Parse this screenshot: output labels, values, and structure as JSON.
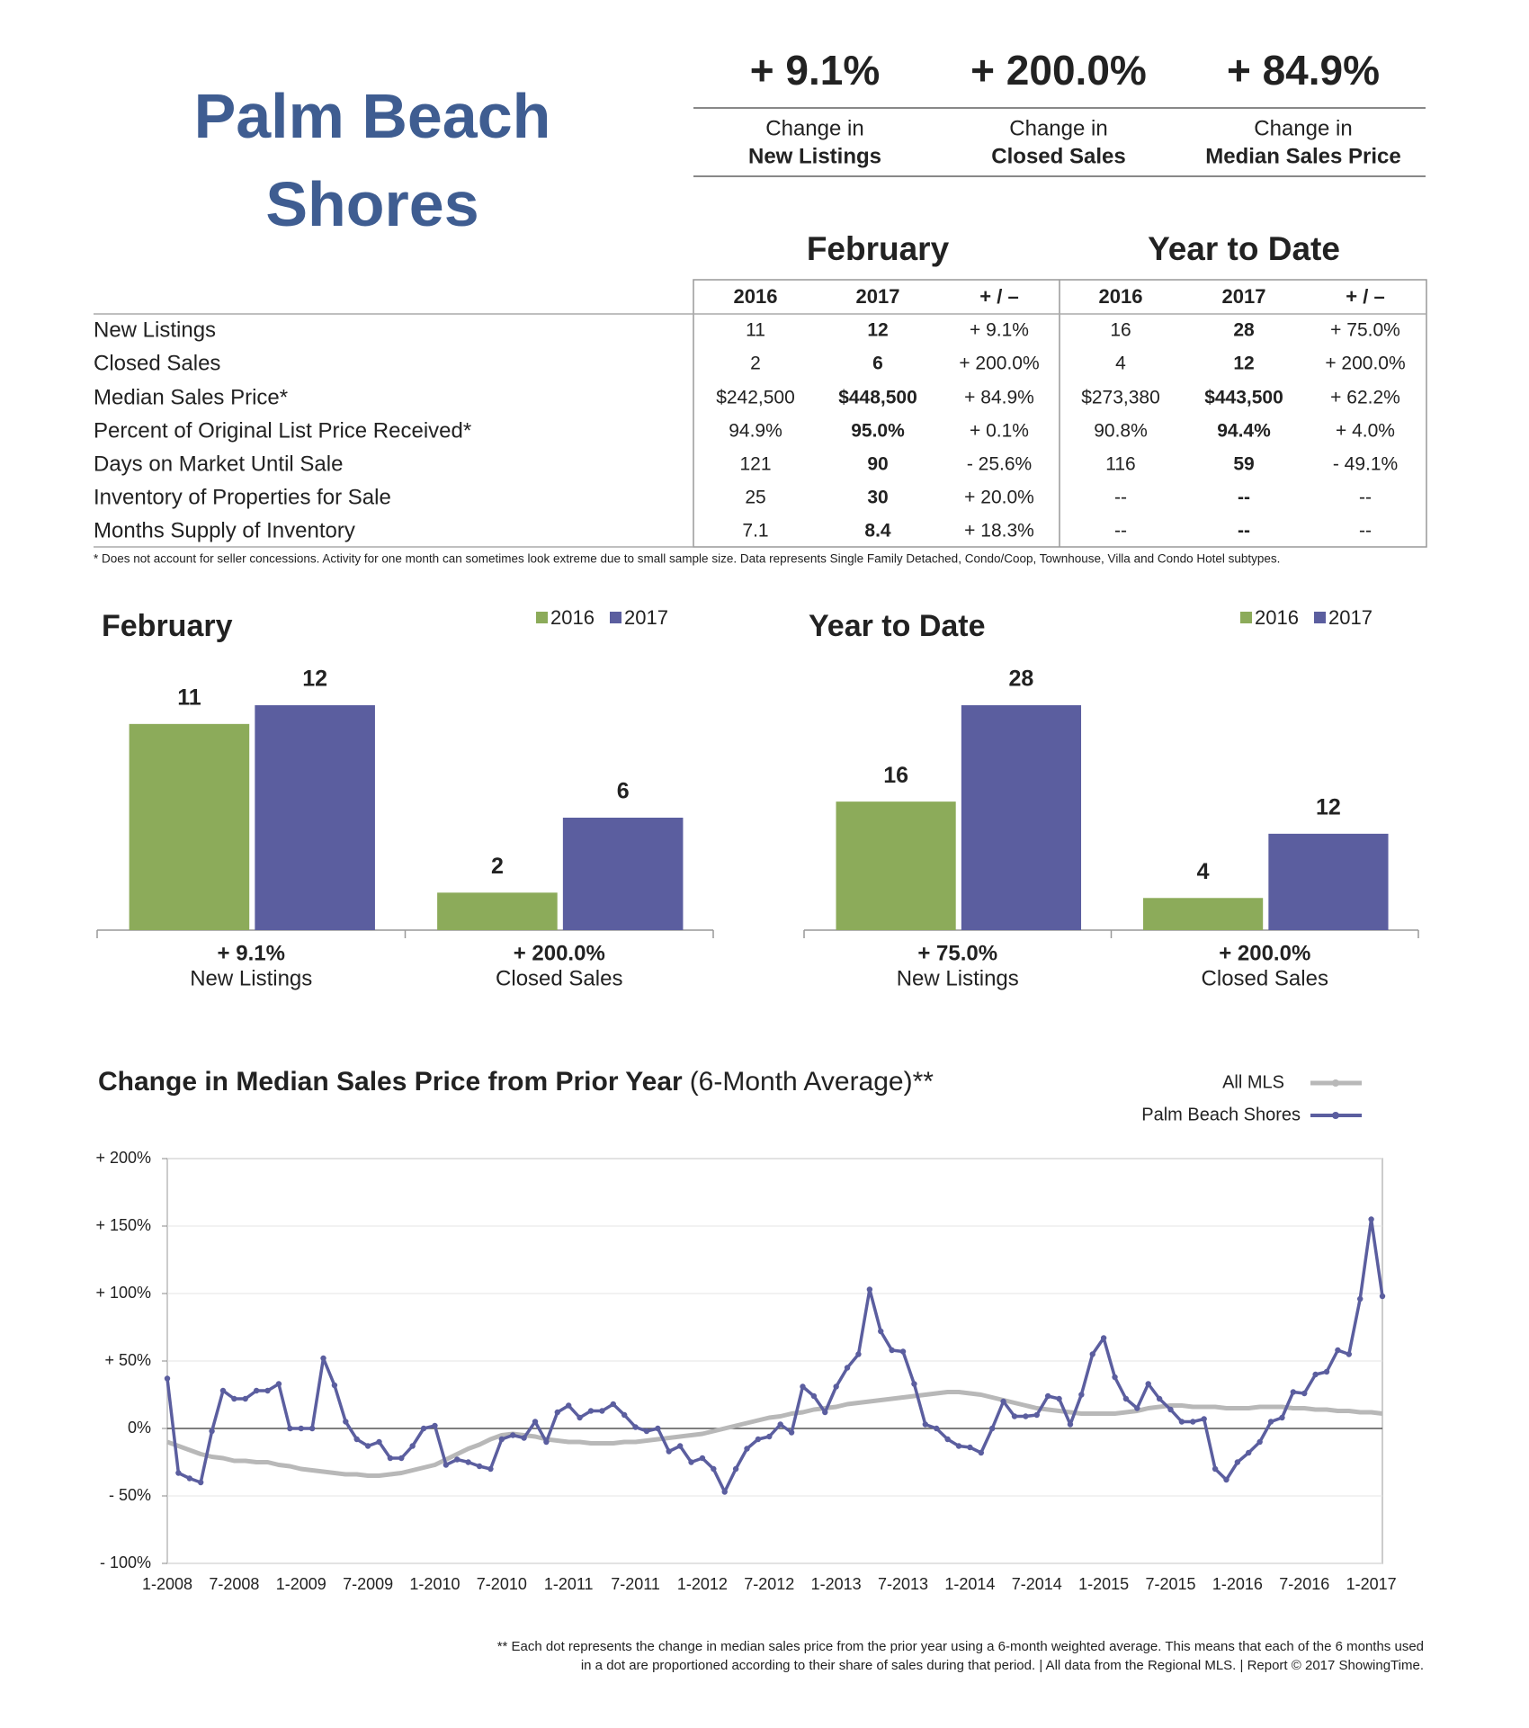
{
  "header": {
    "title": "Palm Beach Shores"
  },
  "summary": [
    {
      "value": "+ 9.1%",
      "label": "Change in",
      "metric": "New Listings"
    },
    {
      "value": "+ 200.0%",
      "label": "Change in",
      "metric": "Closed Sales"
    },
    {
      "value": "+ 84.9%",
      "label": "Change in",
      "metric": "Median Sales Price"
    }
  ],
  "table": {
    "groups": [
      "February",
      "Year to Date"
    ],
    "columns": [
      "2016",
      "2017",
      "+ / –",
      "2016",
      "2017",
      "+ / –"
    ],
    "rows": [
      {
        "label": "New Listings",
        "cells": [
          "11",
          "12",
          "+ 9.1%",
          "16",
          "28",
          "+ 75.0%"
        ]
      },
      {
        "label": "Closed Sales",
        "cells": [
          "2",
          "6",
          "+ 200.0%",
          "4",
          "12",
          "+ 200.0%"
        ]
      },
      {
        "label": "Median Sales Price*",
        "cells": [
          "$242,500",
          "$448,500",
          "+ 84.9%",
          "$273,380",
          "$443,500",
          "+ 62.2%"
        ]
      },
      {
        "label": "Percent of Original List Price Received*",
        "cells": [
          "94.9%",
          "95.0%",
          "+ 0.1%",
          "90.8%",
          "94.4%",
          "+ 4.0%"
        ]
      },
      {
        "label": "Days on Market Until Sale",
        "cells": [
          "121",
          "90",
          "- 25.6%",
          "116",
          "59",
          "- 49.1%"
        ]
      },
      {
        "label": "Inventory of Properties for Sale",
        "cells": [
          "25",
          "30",
          "+ 20.0%",
          "--",
          "--",
          "--"
        ]
      },
      {
        "label": "Months Supply of Inventory",
        "cells": [
          "7.1",
          "8.4",
          "+ 18.3%",
          "--",
          "--",
          "--"
        ]
      }
    ],
    "footnote": "* Does not account for seller concessions. Activity for one month can sometimes look extreme due to small sample size. Data represents Single Family Detached, Condo/Coop, Townhouse, Villa and Condo Hotel subtypes."
  },
  "chart_data": [
    {
      "type": "bar",
      "title": "February",
      "categories": [
        "New Listings",
        "Closed Sales"
      ],
      "category_changes": [
        "+ 9.1%",
        "+ 200.0%"
      ],
      "series": [
        {
          "name": "2016",
          "color": "#8cab5a",
          "values": [
            11,
            2
          ]
        },
        {
          "name": "2017",
          "color": "#5b5e9f",
          "values": [
            12,
            6
          ]
        }
      ]
    },
    {
      "type": "bar",
      "title": "Year to Date",
      "categories": [
        "New Listings",
        "Closed Sales"
      ],
      "category_changes": [
        "+ 75.0%",
        "+ 200.0%"
      ],
      "series": [
        {
          "name": "2016",
          "color": "#8cab5a",
          "values": [
            16,
            4
          ]
        },
        {
          "name": "2017",
          "color": "#5b5e9f",
          "values": [
            28,
            12
          ]
        }
      ]
    },
    {
      "type": "line",
      "title": "Change in Median Sales Price from Prior Year",
      "subtitle": "(6-Month Average)**",
      "categories": [
        "1-2008",
        null,
        null,
        null,
        null,
        null,
        "7-2008",
        null,
        null,
        null,
        null,
        null,
        "1-2009",
        null,
        null,
        null,
        null,
        null,
        "7-2009",
        null,
        null,
        null,
        null,
        null,
        "1-2010",
        null,
        null,
        null,
        null,
        null,
        "7-2010",
        null,
        null,
        null,
        null,
        null,
        "1-2011",
        null,
        null,
        null,
        null,
        null,
        "7-2011",
        null,
        null,
        null,
        null,
        null,
        "1-2012",
        null,
        null,
        null,
        null,
        null,
        "7-2012",
        null,
        null,
        null,
        null,
        null,
        "1-2013",
        null,
        null,
        null,
        null,
        null,
        "7-2013",
        null,
        null,
        null,
        null,
        null,
        "1-2014",
        null,
        null,
        null,
        null,
        null,
        "7-2014",
        null,
        null,
        null,
        null,
        null,
        "1-2015",
        null,
        null,
        null,
        null,
        null,
        "7-2015",
        null,
        null,
        null,
        null,
        null,
        "1-2016",
        null,
        null,
        null,
        null,
        null,
        "7-2016",
        null,
        null,
        null,
        null,
        null,
        "1-2017",
        null
      ],
      "ylim": [
        -100,
        200
      ],
      "yticks": [
        {
          "value": 200,
          "label": "+ 200%"
        },
        {
          "value": 150,
          "label": "+ 150%"
        },
        {
          "value": 100,
          "label": "+ 100%"
        },
        {
          "value": 50,
          "label": "+ 50%"
        },
        {
          "value": 0,
          "label": "0%"
        },
        {
          "value": -50,
          "label": "- 50%"
        },
        {
          "value": -100,
          "label": "- 100%"
        }
      ],
      "series": [
        {
          "name": "All MLS",
          "color": "#b8b8b8",
          "markers": false,
          "values": [
            -10,
            -13,
            -16,
            -19,
            -21,
            -22,
            -24,
            -24,
            -25,
            -25,
            -27,
            -28,
            -30,
            -31,
            -32,
            -33,
            -34,
            -34,
            -35,
            -35,
            -34,
            -33,
            -31,
            -29,
            -27,
            -23,
            -19,
            -15,
            -12,
            -8,
            -5,
            -4,
            -5,
            -6,
            -8,
            -9,
            -10,
            -10,
            -11,
            -11,
            -11,
            -10,
            -10,
            -9,
            -8,
            -7,
            -6,
            -5,
            -4,
            -2,
            0,
            2,
            4,
            6,
            8,
            9,
            11,
            12,
            14,
            15,
            16,
            18,
            19,
            20,
            21,
            22,
            23,
            24,
            25,
            26,
            27,
            27,
            26,
            25,
            23,
            21,
            19,
            17,
            15,
            14,
            13,
            12,
            11,
            11,
            11,
            11,
            12,
            13,
            15,
            16,
            17,
            17,
            16,
            16,
            16,
            15,
            15,
            15,
            16,
            16,
            16,
            15,
            15,
            14,
            14,
            13,
            13,
            12,
            12,
            11
          ]
        },
        {
          "name": "Palm Beach Shores",
          "color": "#5b5e9f",
          "markers": true,
          "values": [
            37,
            -33,
            -37,
            -40,
            -2,
            28,
            22,
            22,
            28,
            28,
            33,
            0,
            0,
            0,
            52,
            32,
            5,
            -8,
            -13,
            -10,
            -22,
            -22,
            -13,
            0,
            2,
            -27,
            -23,
            -25,
            -28,
            -30,
            -8,
            -5,
            -7,
            5,
            -10,
            12,
            17,
            8,
            13,
            13,
            18,
            10,
            1,
            -2,
            0,
            -17,
            -13,
            -25,
            -22,
            -30,
            -47,
            -30,
            -15,
            -8,
            -6,
            3,
            -3,
            31,
            24,
            12,
            31,
            45,
            55,
            103,
            72,
            58,
            57,
            33,
            3,
            0,
            -8,
            -13,
            -14,
            -18,
            0,
            20,
            9,
            9,
            10,
            24,
            22,
            3,
            25,
            55,
            67,
            38,
            22,
            15,
            33,
            22,
            14,
            5,
            5,
            7,
            -30,
            -38,
            -25,
            -18,
            -10,
            5,
            8,
            27,
            26,
            40,
            42,
            58,
            55,
            96,
            155,
            98
          ]
        }
      ]
    }
  ],
  "footer": {
    "lines": [
      "** Each dot represents the change in median sales price from the prior year using a 6-month weighted average. This means that each of the 6 months used",
      "in a dot are proportioned according to their share of sales during that period. | All data from the Regional MLS. | Report © 2017 ShowingTime."
    ]
  }
}
